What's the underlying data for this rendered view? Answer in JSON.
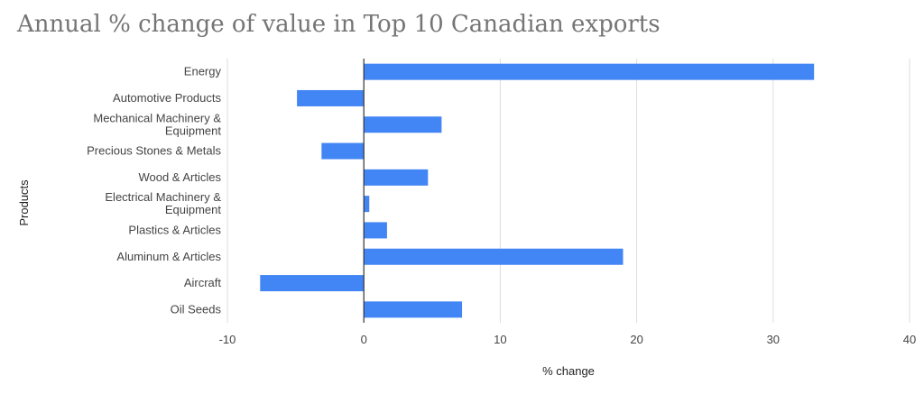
{
  "chart_data": {
    "type": "bar",
    "orientation": "horizontal",
    "title": "Annual % change of value in Top 10 Canadian exports",
    "xlabel": "% change",
    "ylabel": "Products",
    "categories": [
      [
        "Energy"
      ],
      [
        "Automotive Products"
      ],
      [
        "Mechanical Machinery &",
        "Equipment"
      ],
      [
        "Precious Stones & Metals"
      ],
      [
        "Wood & Articles"
      ],
      [
        "Electrical Machinery &",
        "Equipment"
      ],
      [
        "Plastics & Articles"
      ],
      [
        "Aluminum & Articles"
      ],
      [
        "Aircraft"
      ],
      [
        "Oil Seeds"
      ]
    ],
    "values": [
      33,
      -4.9,
      5.7,
      -3.1,
      4.7,
      0.4,
      1.7,
      19,
      -7.6,
      7.2
    ],
    "xlim": [
      -10,
      40
    ],
    "xticks": [
      -10,
      0,
      10,
      20,
      30,
      40
    ],
    "grid": true,
    "bar_color": "#4285f4"
  }
}
